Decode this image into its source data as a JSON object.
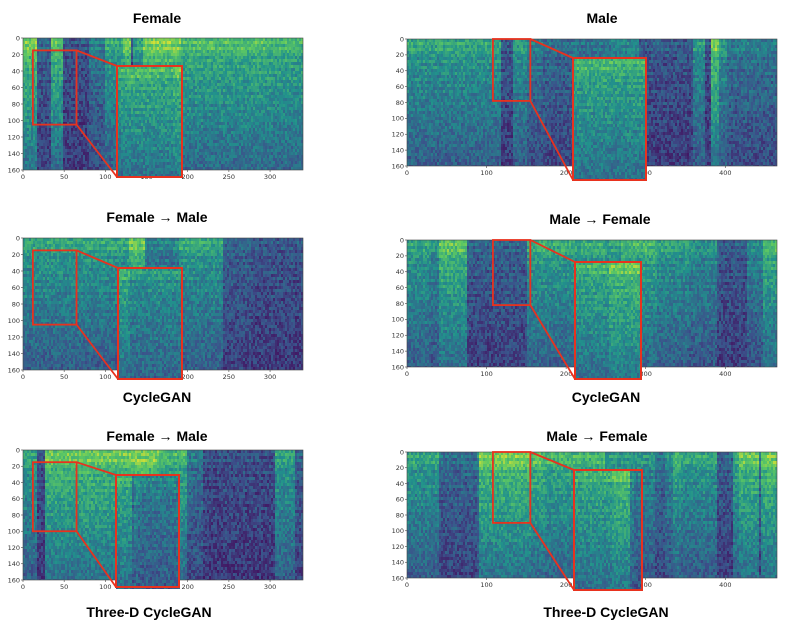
{
  "colors": {
    "zoom_box": "#e8321e",
    "colormap": "viridis"
  },
  "chart_data": [
    {
      "type": "heatmap",
      "title": "Female",
      "caption": "",
      "xlim": [
        0,
        340
      ],
      "ylim": [
        160,
        0
      ],
      "x_ticks": [
        "0",
        "50",
        "100",
        "150",
        "200",
        "250",
        "300"
      ],
      "y_ticks": [
        "0",
        "20",
        "40",
        "60",
        "80",
        "100",
        "120",
        "140",
        "160"
      ],
      "zoom_region": {
        "x": [
          12,
          65
        ],
        "y": [
          15,
          105
        ]
      }
    },
    {
      "type": "heatmap",
      "title": "Male",
      "caption": "",
      "xlim": [
        0,
        465
      ],
      "ylim": [
        160,
        0
      ],
      "x_ticks": [
        "0",
        "100",
        "200",
        "300",
        "400"
      ],
      "y_ticks": [
        "0",
        "20",
        "40",
        "60",
        "80",
        "100",
        "120",
        "140",
        "160"
      ],
      "zoom_region": {
        "x": [
          108,
          155
        ],
        "y": [
          0,
          78
        ]
      }
    },
    {
      "type": "heatmap",
      "title": "Female → Male",
      "caption": "CycleGAN",
      "xlim": [
        0,
        340
      ],
      "ylim": [
        160,
        0
      ],
      "x_ticks": [
        "0",
        "50",
        "100",
        "150",
        "200",
        "250",
        "300"
      ],
      "y_ticks": [
        "0",
        "20",
        "40",
        "60",
        "80",
        "100",
        "120",
        "140",
        "160"
      ],
      "zoom_region": {
        "x": [
          12,
          65
        ],
        "y": [
          15,
          105
        ]
      }
    },
    {
      "type": "heatmap",
      "title": "Male → Female",
      "caption": "CycleGAN",
      "xlim": [
        0,
        465
      ],
      "ylim": [
        160,
        0
      ],
      "x_ticks": [
        "0",
        "100",
        "200",
        "300",
        "400"
      ],
      "y_ticks": [
        "0",
        "20",
        "40",
        "60",
        "80",
        "100",
        "120",
        "140",
        "160"
      ],
      "zoom_region": {
        "x": [
          108,
          155
        ],
        "y": [
          0,
          82
        ]
      }
    },
    {
      "type": "heatmap",
      "title": "Female → Male",
      "caption": "Three-D CycleGAN",
      "xlim": [
        0,
        340
      ],
      "ylim": [
        160,
        0
      ],
      "x_ticks": [
        "0",
        "50",
        "100",
        "150",
        "200",
        "250",
        "300"
      ],
      "y_ticks": [
        "0",
        "20",
        "40",
        "60",
        "80",
        "100",
        "120",
        "140",
        "160"
      ],
      "zoom_region": {
        "x": [
          12,
          65
        ],
        "y": [
          15,
          100
        ]
      }
    },
    {
      "type": "heatmap",
      "title": "Male → Female",
      "caption": "Three-D CycleGAN",
      "xlim": [
        0,
        465
      ],
      "ylim": [
        160,
        0
      ],
      "x_ticks": [
        "0",
        "100",
        "200",
        "300",
        "400"
      ],
      "y_ticks": [
        "0",
        "20",
        "40",
        "60",
        "80",
        "100",
        "120",
        "140",
        "160"
      ],
      "zoom_region": {
        "x": [
          108,
          155
        ],
        "y": [
          0,
          90
        ]
      }
    }
  ]
}
